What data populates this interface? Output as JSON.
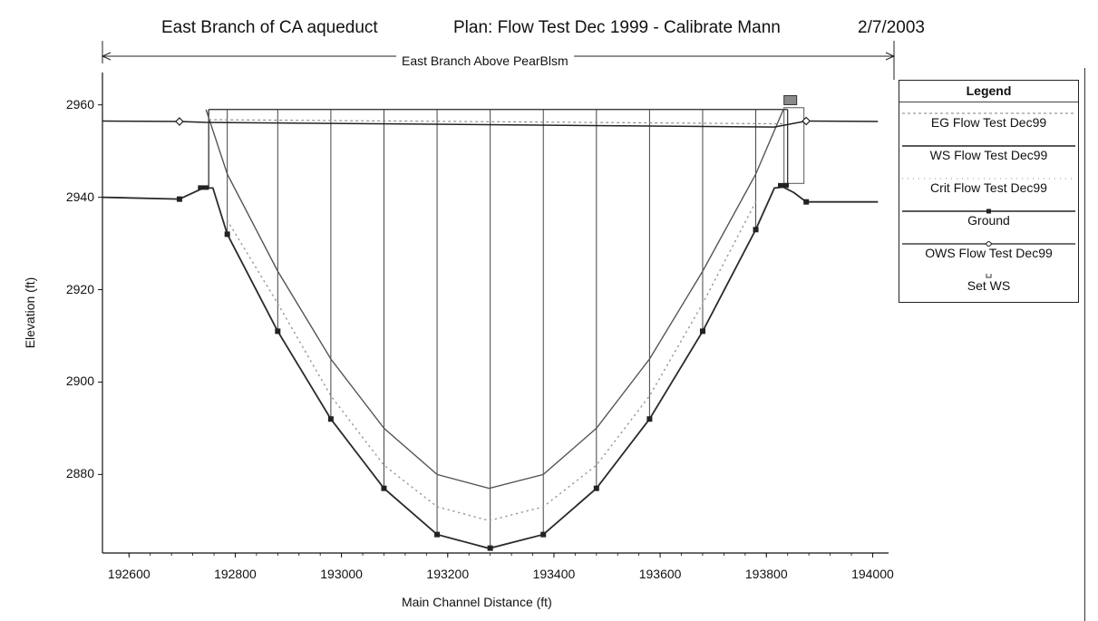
{
  "header": {
    "left": "East Branch of CA aqueduct",
    "plan": "Plan: Flow Test Dec 1999 - Calibrate Mann",
    "date": "2/7/2003"
  },
  "reach_label": "East Branch Above PearBlsm",
  "legend": {
    "title": "Legend",
    "items": [
      {
        "label": "EG  Flow Test Dec99"
      },
      {
        "label": "WS  Flow Test Dec99"
      },
      {
        "label": "Crit  Flow Test Dec99"
      },
      {
        "label": "Ground"
      },
      {
        "label": "OWS  Flow Test Dec99"
      },
      {
        "label": "Set WS"
      }
    ]
  },
  "colors": {
    "ground": "#2b2b2b",
    "eg": "#888888",
    "ws": "#222222",
    "crit": "#9a9a9a",
    "ows": "#555555"
  },
  "chart_data": {
    "type": "line",
    "title": "",
    "xlabel": "Main Channel Distance (ft)",
    "ylabel": "Elevation (ft)",
    "xlim": [
      192550,
      194030
    ],
    "ylim": [
      2863,
      2967
    ],
    "xticks": [
      192600,
      192800,
      193000,
      193200,
      193400,
      193600,
      193800,
      194000
    ],
    "yticks": [
      2880,
      2900,
      2920,
      2940,
      2960
    ],
    "grid": false,
    "legend_position": "right",
    "structure": {
      "left_x": 192750,
      "right_x": 193840,
      "top_y": 2959
    },
    "sections_x": [
      192785,
      192880,
      192980,
      193080,
      193180,
      193280,
      193380,
      193480,
      193580,
      193680,
      193780
    ],
    "series": [
      {
        "name": "Ground",
        "x": [
          192550,
          192695,
          192740,
          192758,
          192785,
          192880,
          192980,
          193080,
          193180,
          193278,
          193380,
          193480,
          193580,
          193680,
          193780,
          193815,
          193832,
          193852,
          193875,
          194010
        ],
        "y": [
          2940,
          2939.6,
          2942,
          2942,
          2932,
          2911,
          2892,
          2877,
          2867,
          2864,
          2867,
          2877,
          2892,
          2911,
          2933,
          2942,
          2942.2,
          2941,
          2939,
          2939
        ]
      },
      {
        "name": "WS  Flow Test Dec99",
        "x": [
          192550,
          192695,
          192745,
          193815,
          193875,
          194010
        ],
        "y": [
          2956.5,
          2956.4,
          2956.2,
          2955.2,
          2956.5,
          2956.4
        ]
      },
      {
        "name": "EG  Flow Test Dec99",
        "x": [
          192750,
          193830
        ],
        "y": [
          2956.8,
          2955.9
        ]
      },
      {
        "name": "Crit  Flow Test Dec99",
        "x": [
          192785,
          192880,
          192980,
          193080,
          193180,
          193278,
          193380,
          193480,
          193580,
          193680,
          193780
        ],
        "y": [
          2935,
          2917,
          2897,
          2882,
          2873,
          2870,
          2873,
          2882,
          2897,
          2917,
          2939
        ]
      },
      {
        "name": "OWS  Flow Test Dec99",
        "x": [
          192745,
          192785,
          192880,
          192980,
          193080,
          193180,
          193278,
          193380,
          193480,
          193580,
          193680,
          193780,
          193832
        ],
        "y": [
          2959,
          2945,
          2924,
          2905,
          2890,
          2880,
          2877,
          2880,
          2890,
          2905,
          2924,
          2945,
          2959
        ]
      }
    ]
  }
}
